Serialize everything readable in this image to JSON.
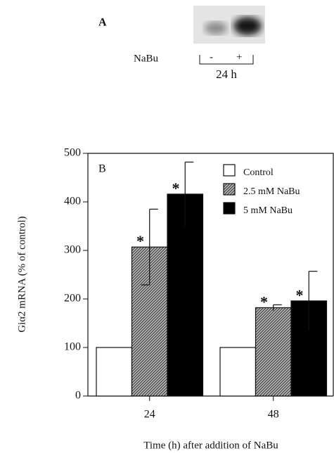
{
  "panel_a": {
    "label": "A",
    "treatment": "NaBu",
    "minus": "-",
    "plus": "+",
    "time": "24 h"
  },
  "chart_data": {
    "type": "bar",
    "panel_label": "B",
    "ylabel": "Giα2 mRNA (% of control)",
    "xlabel": "Time (h) after addition of NaBu",
    "categories": [
      "24",
      "48"
    ],
    "ylim": [
      0,
      500
    ],
    "yticks": [
      0,
      100,
      200,
      300,
      400,
      500
    ],
    "series": [
      {
        "name": "Control",
        "color": "#ffffff",
        "hatch": false,
        "values": [
          100,
          100
        ]
      },
      {
        "name": "2.5 mM NaBu",
        "color": "#9c9c9c",
        "hatch": true,
        "values": [
          307,
          182
        ],
        "errors": [
          78,
          6
        ],
        "markers": [
          "*",
          "*"
        ]
      },
      {
        "name": "5 mM NaBu",
        "color": "#000000",
        "hatch": false,
        "values": [
          416,
          196
        ],
        "errors": [
          66,
          61
        ],
        "markers": [
          "*",
          "*"
        ]
      }
    ]
  }
}
